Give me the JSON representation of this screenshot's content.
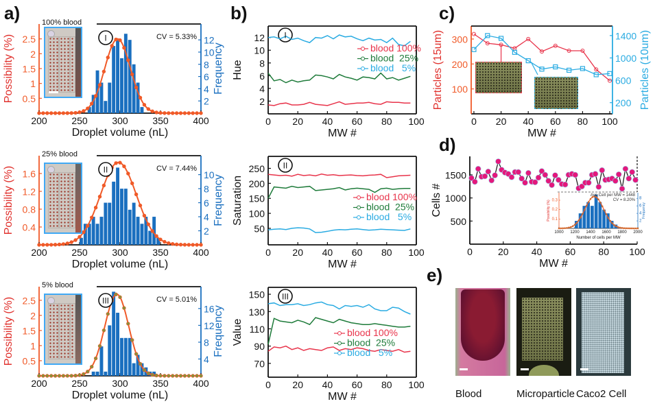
{
  "panels": {
    "a": "a)",
    "b": "b)",
    "c": "c)",
    "d": "d)",
    "e": "e)"
  },
  "photos": {
    "labels": [
      "Blood",
      "Microparticle",
      "Caco2 Cell"
    ]
  },
  "colors": {
    "orange": "#f05a28",
    "red_label": "#e0302c",
    "bar_blue": "#1a6fbf",
    "light_blue": "#29abe2",
    "green": "#1e7b3a",
    "red": "#e8334a",
    "pink": "#e4187c"
  },
  "chart_data": [
    {
      "id": "a-I",
      "type": "bar",
      "roman": "I",
      "inset_label": "100% blood",
      "annotation": "CV = 5.33%",
      "xlabel": "Droplet volume (nL)",
      "ylabel": "Possibility (%)",
      "y2label": "Frequency",
      "xlim": [
        200,
        400
      ],
      "ylim": [
        0,
        3.0
      ],
      "y2lim": [
        0,
        14.6
      ],
      "xticks": [
        200,
        250,
        300,
        350,
        400
      ],
      "yticks": [
        0.5,
        1,
        1.5,
        2,
        2.5
      ],
      "y2ticks": [
        2,
        4,
        6,
        8,
        10,
        12
      ],
      "bins": {
        "start": 260,
        "width": 5,
        "values": [
          1,
          3,
          7,
          5,
          2,
          5,
          11,
          12,
          9,
          13,
          12,
          8,
          5,
          1
        ]
      },
      "fit": {
        "mean": 297,
        "sd": 15.8,
        "peak": 2.5
      }
    },
    {
      "id": "a-II",
      "type": "bar",
      "roman": "II",
      "inset_label": "25% blood",
      "annotation": "CV = 7.44%",
      "xlabel": "Droplet volume (nL)",
      "ylabel": "Possibility (%)",
      "y2label": "Frequency",
      "xlim": [
        200,
        400
      ],
      "ylim": [
        0,
        2.0
      ],
      "y2lim": [
        0,
        12.7
      ],
      "xticks": [
        200,
        250,
        300,
        350,
        400
      ],
      "yticks": [
        0.4,
        0.8,
        1.2,
        1.6
      ],
      "y2ticks": [
        2,
        4,
        6,
        8,
        10
      ],
      "bins": {
        "start": 250,
        "width": 5,
        "values": [
          1,
          3,
          3,
          4,
          3,
          4,
          6,
          6,
          9,
          11,
          8,
          8,
          5,
          6,
          4,
          3,
          4,
          2,
          4,
          1
        ]
      },
      "fit": {
        "mean": 298,
        "sd": 22.2,
        "peak": 1.85
      }
    },
    {
      "id": "a-III",
      "type": "bar",
      "roman": "III",
      "inset_label": "5% blood",
      "annotation": "CV = 5.01%",
      "xlabel": "Droplet volume (nL)",
      "ylabel": "Possibility (%)",
      "y2label": "Frequency",
      "xlim": [
        200,
        400
      ],
      "ylim": [
        0,
        2.95
      ],
      "y2lim": [
        0,
        21.2
      ],
      "xticks": [
        200,
        250,
        300,
        350,
        400
      ],
      "yticks": [
        0.5,
        1,
        1.5,
        2,
        2.5
      ],
      "y2ticks": [
        4,
        8,
        12,
        16
      ],
      "bins": {
        "start": 265,
        "width": 5,
        "values": [
          1,
          1,
          7,
          1,
          12,
          20,
          15,
          9,
          9,
          9,
          3,
          5,
          3,
          2,
          1,
          1
        ]
      },
      "fit": {
        "mean": 296,
        "sd": 14.8,
        "peak": 2.7
      }
    },
    {
      "id": "b-I",
      "type": "line",
      "roman": "I",
      "xlabel": "MW #",
      "ylabel": "Hue",
      "xlim": [
        0,
        100
      ],
      "ylim": [
        0,
        13.8
      ],
      "xticks": [
        0,
        20,
        40,
        60,
        80,
        100
      ],
      "yticks": [
        2,
        4,
        6,
        8,
        10,
        12
      ],
      "x": [
        0,
        4,
        8,
        12,
        16,
        20,
        24,
        28,
        32,
        36,
        40,
        44,
        48,
        52,
        56,
        60,
        64,
        68,
        72,
        76,
        80,
        84,
        88,
        92,
        96
      ],
      "series": [
        {
          "name": "blood 100%",
          "color": "#e8334a",
          "values": [
            1.4,
            1.3,
            1.6,
            1.7,
            1.4,
            1.4,
            1.5,
            1.8,
            1.5,
            1.4,
            1.3,
            1.6,
            1.9,
            1.5,
            1.6,
            1.7,
            1.7,
            1.8,
            1.6,
            1.5,
            1.9,
            1.8,
            1.8,
            1.7,
            1.7
          ]
        },
        {
          "name": "blood  25%",
          "color": "#1e7b3a",
          "values": [
            6.4,
            5.2,
            5.4,
            4.9,
            5.3,
            5.0,
            5.2,
            5.3,
            6.1,
            6.0,
            5.8,
            5.5,
            6.2,
            5.8,
            5.6,
            5.3,
            5.8,
            5.7,
            5.5,
            6.4,
            5.5,
            5.7,
            5.3,
            5.6,
            5.9
          ]
        },
        {
          "name": "blood   5%",
          "color": "#29abe2",
          "values": [
            12.0,
            12.1,
            11.8,
            12.2,
            11.7,
            11.9,
            11.5,
            11.2,
            12.0,
            11.9,
            12.3,
            11.8,
            12.4,
            12.1,
            12.2,
            11.8,
            11.5,
            11.9,
            11.6,
            11.7,
            11.2,
            11.9,
            10.9,
            10.7,
            11.4
          ]
        }
      ]
    },
    {
      "id": "b-II",
      "type": "line",
      "roman": "II",
      "xlabel": "MW #",
      "ylabel": "Saturation",
      "xlim": [
        0,
        100
      ],
      "ylim": [
        -5,
        290
      ],
      "xticks": [
        0,
        20,
        40,
        60,
        80,
        100
      ],
      "yticks": [
        50,
        100,
        150,
        200,
        250
      ],
      "x": [
        0,
        4,
        8,
        12,
        16,
        20,
        24,
        28,
        32,
        36,
        40,
        44,
        48,
        52,
        56,
        60,
        64,
        68,
        72,
        76,
        80,
        84,
        88,
        92,
        96
      ],
      "series": [
        {
          "name": "blood 100%",
          "color": "#e8334a",
          "values": [
            230,
            228,
            226,
            227,
            224,
            230,
            226,
            228,
            225,
            231,
            227,
            229,
            226,
            227,
            228,
            226,
            225,
            227,
            228,
            230,
            219,
            222,
            225,
            226,
            227
          ]
        },
        {
          "name": "blood  25%",
          "color": "#1e7b3a",
          "values": [
            150,
            188,
            186,
            184,
            190,
            186,
            188,
            190,
            176,
            178,
            180,
            182,
            186,
            178,
            182,
            184,
            182,
            180,
            170,
            182,
            184,
            180,
            182,
            183,
            183
          ]
        },
        {
          "name": "blood   5%",
          "color": "#29abe2",
          "values": [
            45,
            47,
            48,
            46,
            50,
            52,
            51,
            48,
            36,
            37,
            40,
            44,
            46,
            45,
            47,
            48,
            46,
            44,
            45,
            47,
            46,
            45,
            44,
            43,
            48
          ]
        }
      ]
    },
    {
      "id": "b-III",
      "type": "line",
      "roman": "III",
      "xlabel": "MW #",
      "ylabel": "Value",
      "xlim": [
        0,
        100
      ],
      "ylim": [
        54,
        158
      ],
      "xticks": [
        0,
        20,
        40,
        60,
        80,
        100
      ],
      "yticks": [
        70,
        90,
        110,
        130,
        150
      ],
      "x": [
        0,
        4,
        8,
        12,
        16,
        20,
        24,
        28,
        32,
        36,
        40,
        44,
        48,
        52,
        56,
        60,
        64,
        68,
        72,
        76,
        80,
        84,
        88,
        92,
        96
      ],
      "series": [
        {
          "name": "blood 100%",
          "color": "#e8334a",
          "values": [
            84,
            89,
            88,
            90,
            86,
            88,
            85,
            87,
            86,
            85,
            88,
            89,
            85,
            87,
            86,
            88,
            87,
            85,
            84,
            86,
            85,
            84,
            86,
            83,
            84
          ]
        },
        {
          "name": "blood  25%",
          "color": "#1e7b3a",
          "values": [
            92,
            122,
            119,
            118,
            117,
            120,
            118,
            115,
            123,
            121,
            119,
            117,
            121,
            119,
            117,
            116,
            115,
            115,
            116,
            115,
            114,
            113,
            112,
            112,
            113
          ]
        },
        {
          "name": "blood   5%",
          "color": "#29abe2",
          "values": [
            139,
            140,
            137,
            138,
            138,
            139,
            137,
            138,
            140,
            141,
            138,
            137,
            133,
            137,
            136,
            137,
            135,
            138,
            133,
            131,
            131,
            135,
            134,
            130,
            127
          ]
        }
      ]
    },
    {
      "id": "c",
      "type": "line",
      "xlabel": "MW #",
      "ylabel": "Particles (15um)",
      "y2label": "Particles (10um)",
      "xlim": [
        -2,
        102
      ],
      "ylim": [
        0,
        352
      ],
      "y2lim": [
        0,
        1570
      ],
      "xticks": [
        0,
        20,
        40,
        60,
        80,
        100
      ],
      "yticks": [
        100,
        200,
        300
      ],
      "y2ticks": [
        200,
        600,
        1000,
        1400
      ],
      "x": [
        0,
        10,
        20,
        30,
        40,
        50,
        60,
        70,
        80,
        90,
        100
      ],
      "series": [
        {
          "name": "Particles (15um)",
          "axis": "left",
          "color": "#e8334a",
          "values": [
            320,
            283,
            277,
            263,
            300,
            250,
            273,
            253,
            253,
            178,
            133
          ]
        },
        {
          "name": "Particles (10um)",
          "axis": "right",
          "color": "#29abe2",
          "values": [
            1150,
            1400,
            1350,
            1100,
            950,
            800,
            840,
            780,
            810,
            700,
            720
          ]
        }
      ]
    },
    {
      "id": "d",
      "type": "scatter",
      "xlabel": "MW #",
      "ylabel": "Cells #",
      "xlim": [
        0,
        100
      ],
      "ylim": [
        0,
        1900
      ],
      "xticks": [
        0,
        20,
        40,
        60,
        80,
        100
      ],
      "yticks": [
        500,
        1000,
        1500
      ],
      "x_start": 1,
      "x_step": 2,
      "values": [
        1430,
        1350,
        1630,
        1460,
        1470,
        1570,
        1380,
        1490,
        1790,
        1610,
        1550,
        1520,
        1450,
        1560,
        1560,
        1420,
        1330,
        1540,
        1350,
        1340,
        1440,
        1580,
        1500,
        1370,
        1280,
        1490,
        1390,
        1300,
        1290,
        1500,
        1520,
        1500,
        1210,
        1250,
        1330,
        1330,
        1500,
        1520,
        1240,
        1600,
        1390,
        1400,
        1420,
        1370,
        1510,
        1200,
        1630,
        1420,
        1560,
        1390
      ]
    },
    {
      "id": "d-inset",
      "type": "bar",
      "annotation": "Ave Cell per MW = 1448",
      "annotation2": "CV = 8.20%",
      "xlabel": "Number of cells per MW",
      "ylabel": "Possibility (%)",
      "y2label": "Frequency",
      "xlim": [
        1000,
        2000
      ],
      "ylim": [
        0,
        0.38
      ],
      "y2lim": [
        0,
        9.5
      ],
      "xticks": [
        1000,
        1200,
        1400,
        1600,
        1800,
        2000
      ],
      "yticks": [
        0.1,
        0.2,
        0.3
      ],
      "y2ticks": [
        2,
        4,
        6,
        8
      ],
      "bins": {
        "start": 1200,
        "width": 50,
        "values": [
          2,
          4,
          6,
          7,
          6,
          9,
          7,
          5,
          4,
          2,
          1
        ]
      },
      "fit": {
        "mean": 1448,
        "sd": 118.7,
        "peak": 0.34
      }
    }
  ]
}
